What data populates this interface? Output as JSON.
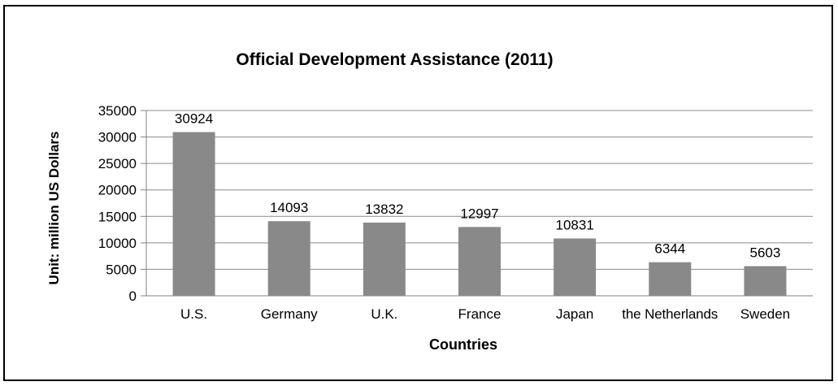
{
  "chart_data": {
    "type": "bar",
    "title": "Official Development Assistance (2011)",
    "xlabel": "Countries",
    "ylabel": "Unit: million US Dollars",
    "categories": [
      "U.S.",
      "Germany",
      "U.K.",
      "France",
      "Japan",
      "the Netherlands",
      "Sweden"
    ],
    "values": [
      30924,
      14093,
      13832,
      12997,
      10831,
      6344,
      5603
    ],
    "ylim": [
      0,
      35000
    ],
    "yticks": [
      0,
      5000,
      10000,
      15000,
      20000,
      25000,
      30000,
      35000
    ],
    "grid": true,
    "legend": "none",
    "bar_color": "#898989",
    "show_data_labels": true
  }
}
